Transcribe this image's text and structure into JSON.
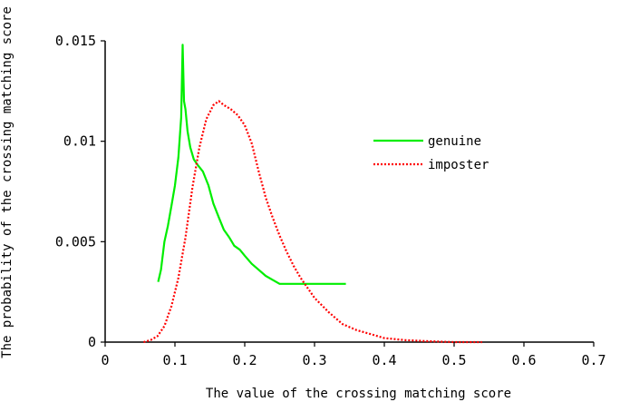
{
  "chart_data": {
    "type": "line",
    "title": "",
    "xlabel": "The value of the crossing matching score",
    "ylabel": "The probability of the crossing matching score",
    "xlim": [
      0,
      0.7
    ],
    "ylim": [
      0,
      0.015
    ],
    "x_ticks": [
      "0",
      "0.1",
      "0.2",
      "0.3",
      "0.4",
      "0.5",
      "0.6",
      "0.7"
    ],
    "y_ticks": [
      "0",
      "0.005",
      "0.01",
      "0.015"
    ],
    "grid": false,
    "legend_position": "right",
    "series": [
      {
        "name": "genuine",
        "color": "#00ee00",
        "style": "solid",
        "x": [
          0.076,
          0.08,
          0.085,
          0.09,
          0.095,
          0.1,
          0.105,
          0.109,
          0.111,
          0.113,
          0.115,
          0.118,
          0.122,
          0.127,
          0.133,
          0.14,
          0.148,
          0.155,
          0.163,
          0.17,
          0.178,
          0.185,
          0.193,
          0.2,
          0.21,
          0.22,
          0.23,
          0.24,
          0.25,
          0.255,
          0.27,
          0.3,
          0.345
        ],
        "values": [
          0.003,
          0.0036,
          0.005,
          0.0058,
          0.0068,
          0.0078,
          0.0092,
          0.0112,
          0.0148,
          0.012,
          0.0116,
          0.0105,
          0.0097,
          0.0091,
          0.0088,
          0.0085,
          0.0078,
          0.0069,
          0.0062,
          0.0056,
          0.0052,
          0.0048,
          0.0046,
          0.0043,
          0.0039,
          0.0036,
          0.0033,
          0.0031,
          0.0029,
          0.0029,
          0.0029,
          0.0029,
          0.0029
        ]
      },
      {
        "name": "imposter",
        "color": "#ff0000",
        "style": "dotted",
        "x": [
          0.055,
          0.065,
          0.075,
          0.085,
          0.095,
          0.105,
          0.115,
          0.125,
          0.135,
          0.145,
          0.155,
          0.163,
          0.17,
          0.18,
          0.19,
          0.2,
          0.21,
          0.22,
          0.23,
          0.24,
          0.25,
          0.26,
          0.27,
          0.28,
          0.29,
          0.3,
          0.32,
          0.34,
          0.36,
          0.38,
          0.4,
          0.43,
          0.46,
          0.5,
          0.54
        ],
        "values": [
          0.0,
          0.0001,
          0.0003,
          0.0008,
          0.0018,
          0.0032,
          0.0052,
          0.0077,
          0.0097,
          0.0111,
          0.0118,
          0.012,
          0.0118,
          0.0116,
          0.0113,
          0.0108,
          0.0099,
          0.0085,
          0.0072,
          0.0062,
          0.0053,
          0.0045,
          0.0038,
          0.0032,
          0.0027,
          0.0022,
          0.0015,
          0.0009,
          0.0006,
          0.0004,
          0.0002,
          0.0001,
          5e-05,
          0.0,
          0.0
        ]
      }
    ]
  }
}
